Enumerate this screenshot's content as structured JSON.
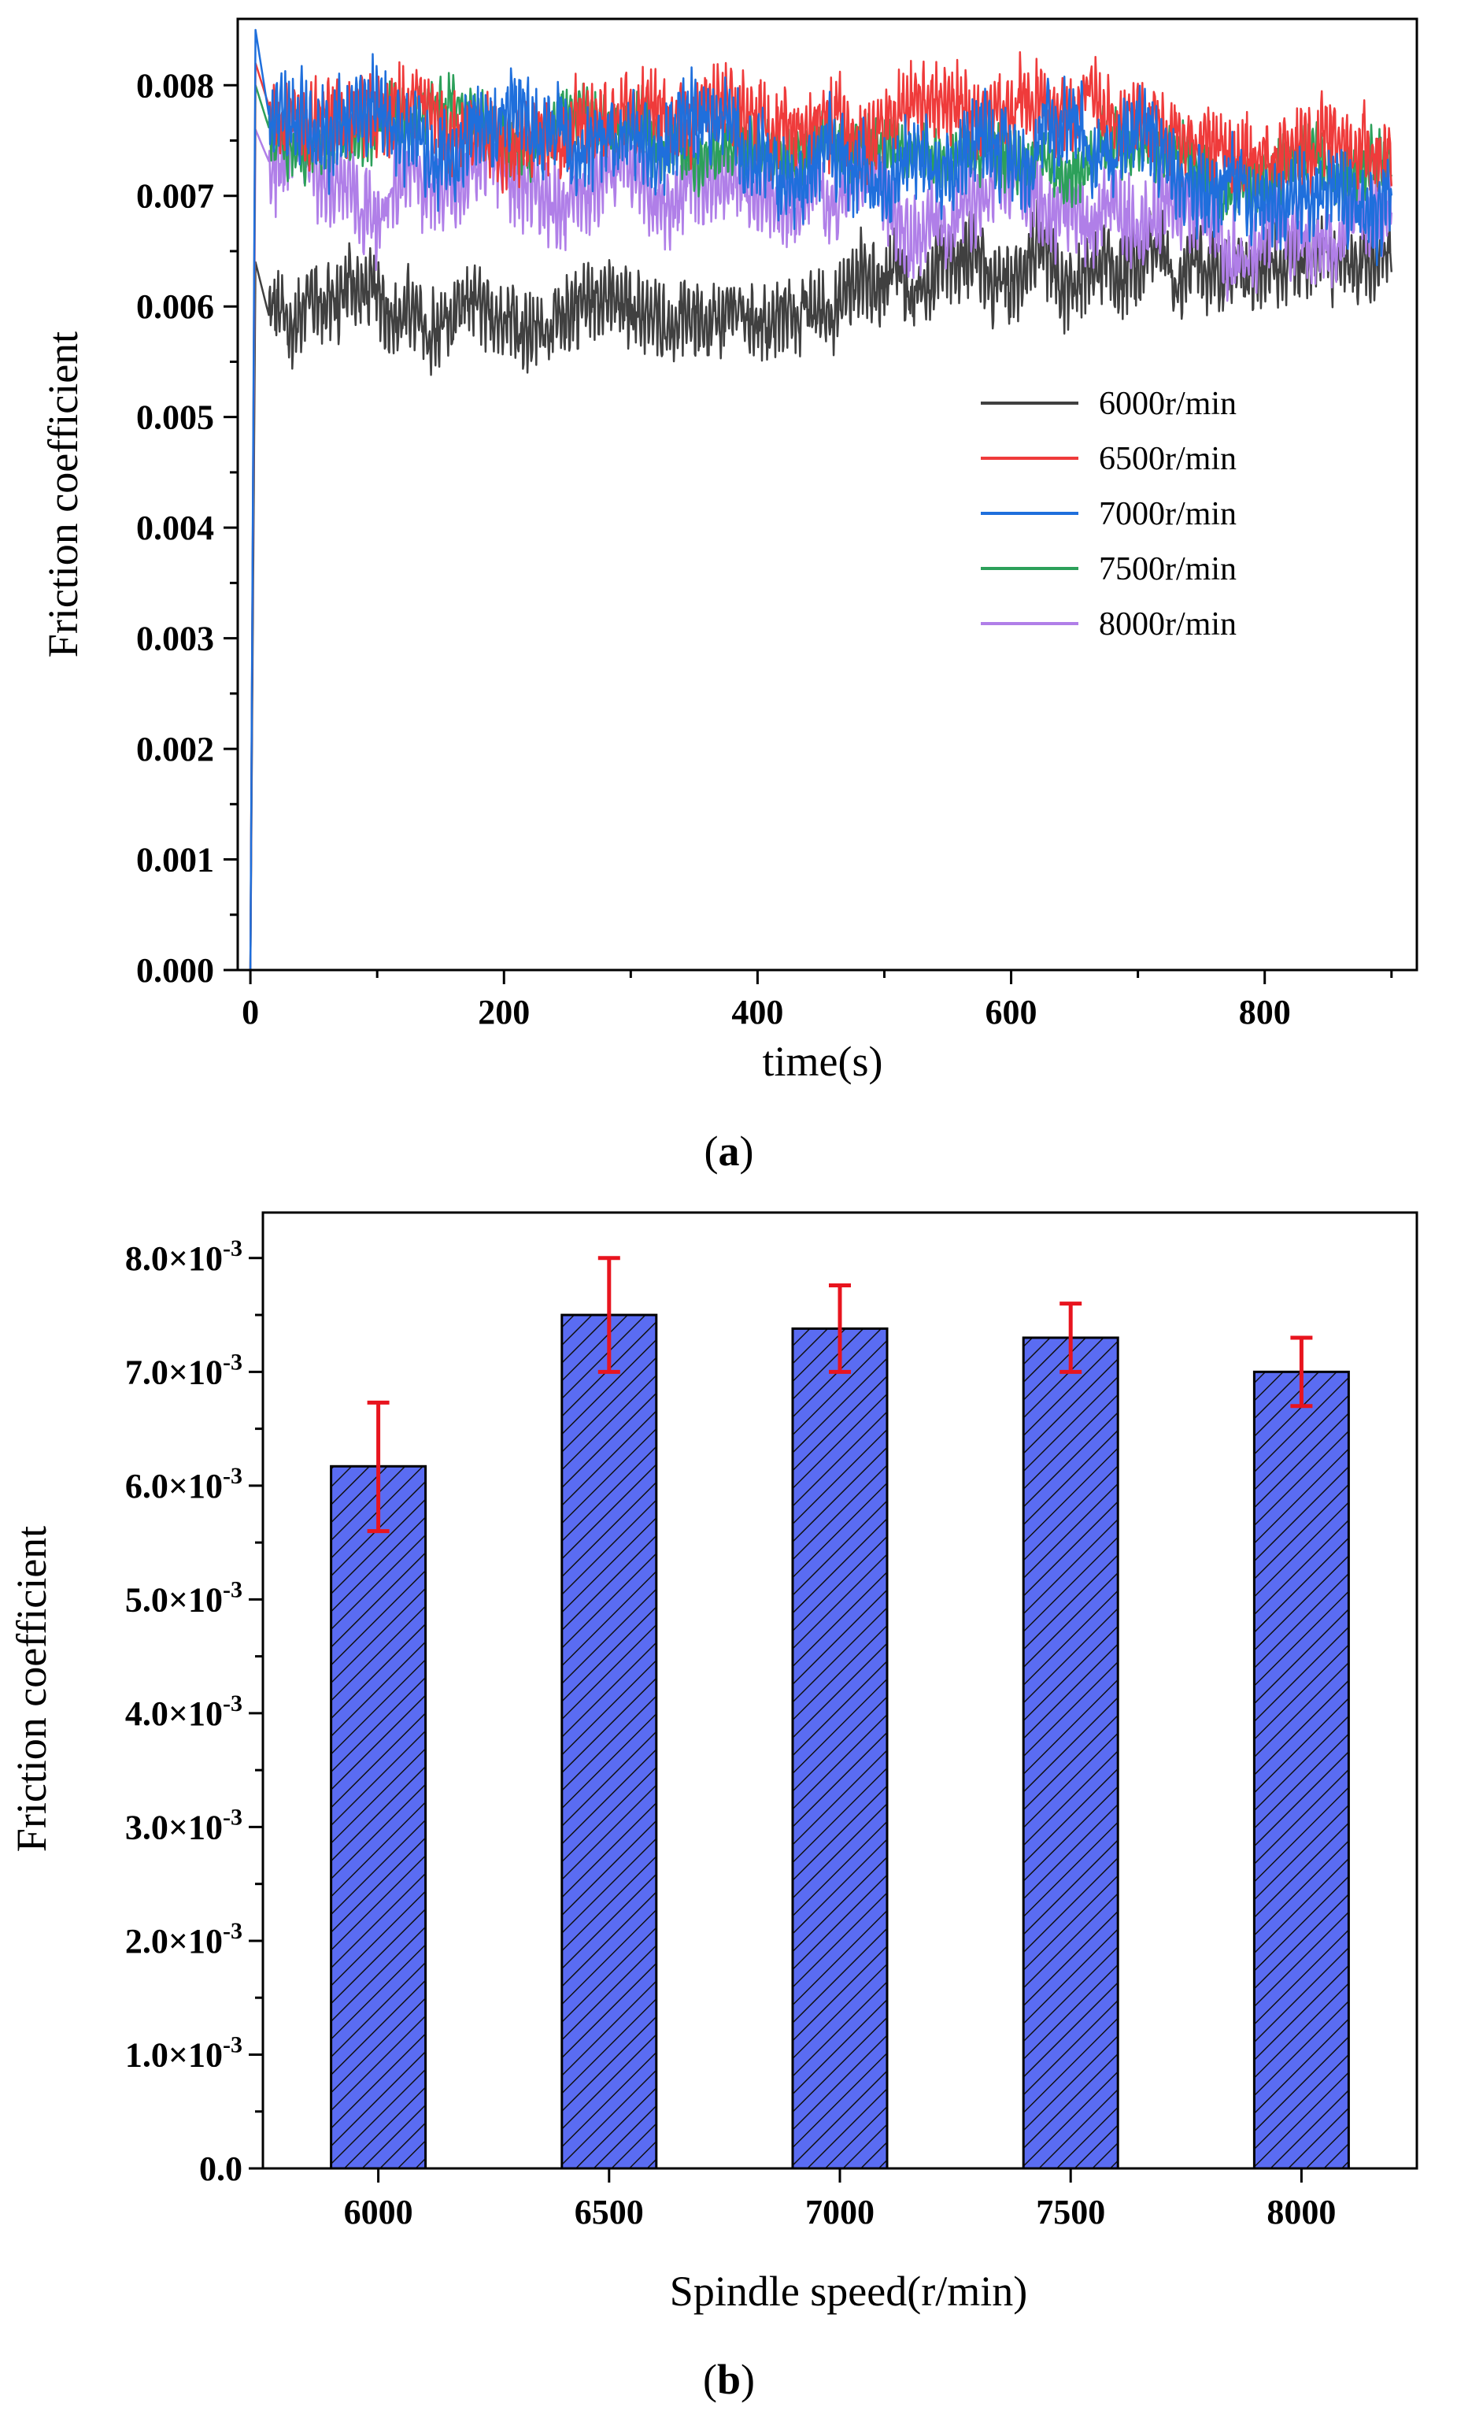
{
  "chart_data": [
    {
      "panel": "a",
      "type": "line",
      "xlabel": "time(s)",
      "ylabel": "Friction coefficient",
      "xlim": [
        -10,
        920
      ],
      "ylim": [
        0,
        0.0086
      ],
      "xticks": [
        "0",
        "200",
        "400",
        "600",
        "800"
      ],
      "xtick_values": [
        0,
        200,
        400,
        600,
        800
      ],
      "yticks": [
        "0.000",
        "0.001",
        "0.002",
        "0.003",
        "0.004",
        "0.005",
        "0.006",
        "0.007",
        "0.008"
      ],
      "ytick_values": [
        0,
        0.001,
        0.002,
        0.003,
        0.004,
        0.005,
        0.006,
        0.007,
        0.008
      ],
      "legend_position": "center-right",
      "series": [
        {
          "name": "6000r/min",
          "color": "#404040",
          "mean_start": 0.0059,
          "mean_end": 0.0063,
          "amplitude": 0.00045,
          "peak": 0.0064
        },
        {
          "name": "6500r/min",
          "color": "#ef3b3b",
          "mean_start": 0.0078,
          "mean_end": 0.0075,
          "amplitude": 0.00045,
          "peak": 0.0082
        },
        {
          "name": "7000r/min",
          "color": "#1f6fdc",
          "mean_start": 0.0077,
          "mean_end": 0.0073,
          "amplitude": 0.0005,
          "peak": 0.0085
        },
        {
          "name": "7500r/min",
          "color": "#2ca05a",
          "mean_start": 0.0076,
          "mean_end": 0.0072,
          "amplitude": 0.00035,
          "peak": 0.008
        },
        {
          "name": "8000r/min",
          "color": "#b07fe8",
          "mean_start": 0.0073,
          "mean_end": 0.0068,
          "amplitude": 0.0005,
          "peak": 0.0076
        }
      ]
    },
    {
      "panel": "b",
      "type": "bar",
      "xlabel": "Spindle speed(r/min)",
      "ylabel": "Friction coefficient",
      "ylim": [
        0,
        0.0084
      ],
      "categories": [
        "6000",
        "6500",
        "7000",
        "7500",
        "8000"
      ],
      "values": [
        0.00617,
        0.0075,
        0.00738,
        0.0073,
        0.007
      ],
      "error_high": [
        0.00673,
        0.008,
        0.00776,
        0.0076,
        0.0073
      ],
      "error_low": [
        0.0056,
        0.007,
        0.007,
        0.007,
        0.0067
      ],
      "bar_color": "#5a6cf2",
      "error_color": "#e8141e",
      "ytick_values": [
        0,
        0.001,
        0.002,
        0.003,
        0.004,
        0.005,
        0.006,
        0.007,
        0.008
      ],
      "ytick_mantissas": [
        "0.0",
        "1.0×10",
        "2.0×10",
        "3.0×10",
        "4.0×10",
        "5.0×10",
        "6.0×10",
        "7.0×10",
        "8.0×10"
      ],
      "ytick_exponent": "-3"
    }
  ],
  "captions": {
    "a_open": "(",
    "a_letter": "a",
    "a_close": ")",
    "b_open": "(",
    "b_letter": "b",
    "b_close": ")"
  }
}
